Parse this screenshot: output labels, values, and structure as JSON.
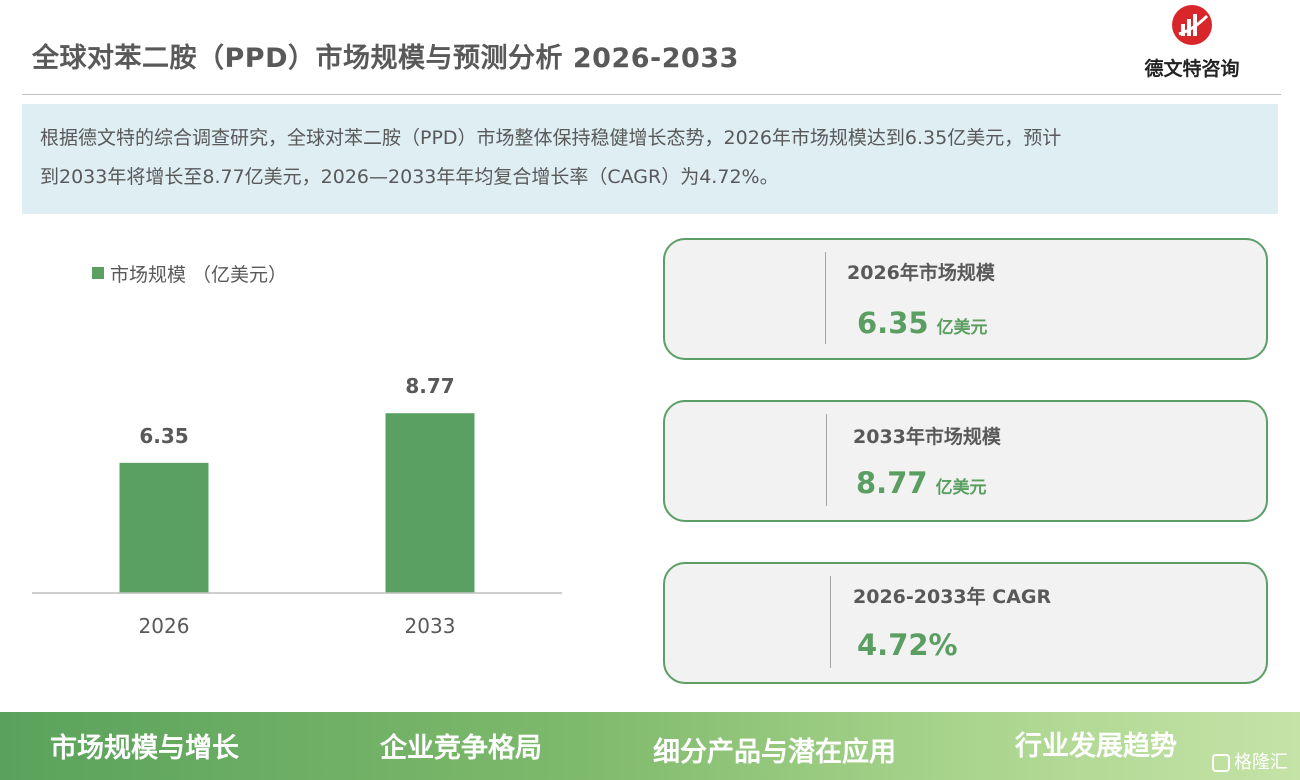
{
  "header": {
    "title": "全球对苯二胺（PPD）市场规模与预测分析 2026-2033",
    "logo_text": "德文特咨询"
  },
  "summary": {
    "line1": "根据德文特的综合调查研究，全球对苯二胺（PPD）市场整体保持稳健增长态势，2026年市场规模达到6.35亿美元，预计",
    "line2": "到2033年将增长至8.77亿美元，2026—2033年年均复合增长率（CAGR）为4.72%。"
  },
  "chart_data": {
    "type": "bar",
    "categories": [
      "2026",
      "2033"
    ],
    "series": [
      {
        "name": "市场规模 （亿美元）",
        "values": [
          6.35,
          8.77
        ],
        "color": "#5aa062"
      }
    ],
    "data_labels": [
      "6.35",
      "8.77"
    ],
    "ylim": [
      0,
      10.5
    ],
    "grid": false,
    "legend_position": "top-left"
  },
  "cards": [
    {
      "label": "2026年市场规模",
      "value": "6.35",
      "unit": "亿美元"
    },
    {
      "label": "2033年市场规模",
      "value": "8.77",
      "unit": "亿美元"
    },
    {
      "label": "2026-2033年 CAGR",
      "value": "4.72%",
      "unit": ""
    }
  ],
  "bottom_nav": {
    "items": [
      "市场规模与增长",
      "企业竞争格局",
      "细分产品与潜在应用",
      "行业发展趋势"
    ]
  },
  "watermark": {
    "text": "格隆汇"
  },
  "colors": {
    "accent_green": "#5aa062",
    "card_border": "#5b9e66",
    "summary_bg": "#deeef3",
    "logo_red": "#d9262a"
  }
}
